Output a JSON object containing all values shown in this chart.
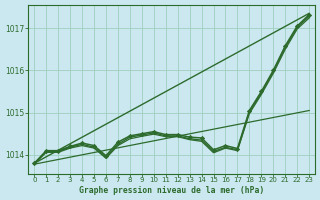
{
  "title": "Graphe pression niveau de la mer (hPa)",
  "background_color": "#cbe8f0",
  "grid_color": "#9ecfbe",
  "line_color": "#2d6b2d",
  "xlim": [
    -0.5,
    23.5
  ],
  "ylim": [
    1013.55,
    1017.55
  ],
  "yticks": [
    1014,
    1015,
    1016,
    1017
  ],
  "xticks": [
    0,
    1,
    2,
    3,
    4,
    5,
    6,
    7,
    8,
    9,
    10,
    11,
    12,
    13,
    14,
    15,
    16,
    17,
    18,
    19,
    20,
    21,
    22,
    23
  ],
  "series": [
    {
      "x": [
        0,
        23
      ],
      "y": [
        1013.8,
        1017.35
      ],
      "marker": false,
      "linewidth": 1.0
    },
    {
      "x": [
        0,
        1,
        2,
        3,
        4,
        5,
        6,
        7,
        8,
        9,
        10,
        11,
        12,
        13,
        14,
        15,
        16,
        17,
        18,
        19,
        20,
        21,
        22,
        23
      ],
      "y": [
        1013.8,
        1014.1,
        1014.1,
        1014.2,
        1014.28,
        1014.22,
        1013.98,
        1014.3,
        1014.45,
        1014.5,
        1014.55,
        1014.48,
        1014.48,
        1014.42,
        1014.4,
        1014.12,
        1014.22,
        1014.15,
        1015.05,
        1015.5,
        1016.0,
        1016.58,
        1017.05,
        1017.32
      ],
      "marker": true,
      "linewidth": 1.1
    },
    {
      "x": [
        0,
        1,
        2,
        3,
        4,
        5,
        6,
        7,
        8,
        9,
        10,
        11,
        12,
        13,
        14,
        15,
        16,
        17,
        18,
        19,
        20,
        21,
        22,
        23
      ],
      "y": [
        1013.8,
        1014.08,
        1014.08,
        1014.18,
        1014.25,
        1014.18,
        1013.95,
        1014.25,
        1014.42,
        1014.47,
        1014.52,
        1014.45,
        1014.45,
        1014.38,
        1014.35,
        1014.08,
        1014.18,
        1014.12,
        1015.02,
        1015.47,
        1015.97,
        1016.55,
        1017.02,
        1017.28
      ],
      "marker": false,
      "linewidth": 1.0
    },
    {
      "x": [
        0,
        1,
        2,
        3,
        4,
        5,
        6,
        7,
        8,
        9,
        10,
        11,
        12,
        13,
        14,
        15,
        16,
        17,
        18,
        19,
        20,
        21,
        22,
        23
      ],
      "y": [
        1013.78,
        1014.06,
        1014.06,
        1014.16,
        1014.22,
        1014.16,
        1013.92,
        1014.22,
        1014.38,
        1014.44,
        1014.49,
        1014.43,
        1014.43,
        1014.36,
        1014.32,
        1014.05,
        1014.16,
        1014.1,
        1014.98,
        1015.43,
        1015.93,
        1016.5,
        1016.98,
        1017.24
      ],
      "marker": false,
      "linewidth": 0.9
    },
    {
      "x": [
        0,
        23
      ],
      "y": [
        1013.78,
        1015.05
      ],
      "marker": false,
      "linewidth": 0.9
    }
  ]
}
